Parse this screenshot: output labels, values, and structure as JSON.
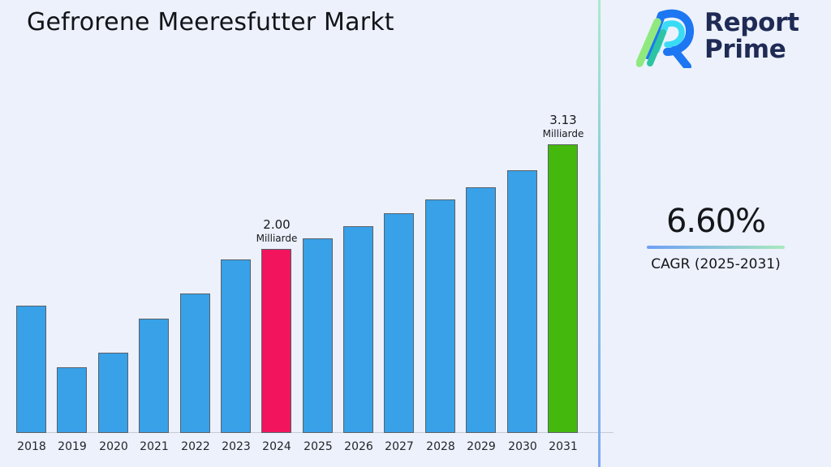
{
  "page": {
    "background_color": "#ECF1FB",
    "divider_gradient": [
      "#ACEBCB",
      "#7EC6DF",
      "#7FA8F2"
    ]
  },
  "header": {
    "title": "Gefrorene Meeresfutter Markt"
  },
  "logo": {
    "line1": "Report",
    "line2": "Prime",
    "text_color": "#1F2B55",
    "mark_colors": {
      "blue": "#1D76F2",
      "cyan": "#39DCF4",
      "light_green": "#90E97F",
      "teal": "#2CC4A4"
    }
  },
  "cagr": {
    "value": "6.60%",
    "label": "CAGR (2025-2031)",
    "underline_gradient": [
      "#6FA0F6",
      "#A9E9BD"
    ]
  },
  "chart_data": {
    "type": "bar",
    "title": "Gefrorene Meeresfutter Markt",
    "unit": "Milliarde",
    "categories": [
      "2018",
      "2019",
      "2020",
      "2021",
      "2022",
      "2023",
      "2024",
      "2025",
      "2026",
      "2027",
      "2028",
      "2029",
      "2030",
      "2031"
    ],
    "values": [
      1.38,
      0.71,
      0.87,
      1.24,
      1.51,
      1.88,
      2.0,
      2.11,
      2.24,
      2.38,
      2.53,
      2.66,
      2.85,
      3.13
    ],
    "ylim": [
      0,
      3.13
    ],
    "grid": false,
    "legend": false,
    "bar_colors": {
      "default": "#38A1E8",
      "2024": "#F2155E",
      "2031": "#44B80D"
    },
    "bar_border_color": "#5A6068",
    "annotations": [
      {
        "category": "2024",
        "value_label": "2.00",
        "unit_label": "Milliarde"
      },
      {
        "category": "2031",
        "value_label": "3.13",
        "unit_label": "Milliarde"
      }
    ]
  }
}
